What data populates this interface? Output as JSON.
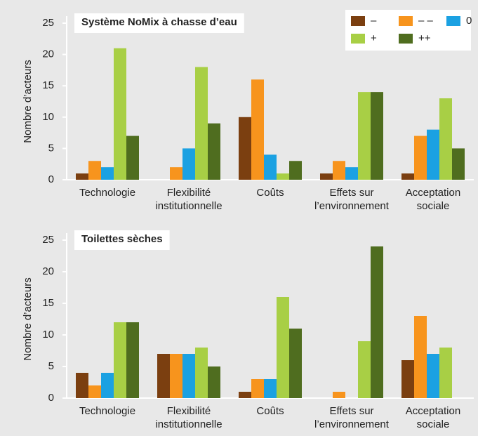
{
  "chart_data": [
    {
      "type": "bar",
      "title": "Système NoMix à chasse d’eau",
      "y_label": "Nombre d’acteurs",
      "categories": [
        [
          "Technologie"
        ],
        [
          "Flexibilité",
          "institutionnelle"
        ],
        [
          "Coûts"
        ],
        [
          "Effets sur",
          "l’environnement"
        ],
        [
          "Acceptation",
          "sociale"
        ]
      ],
      "series": [
        {
          "name": "–",
          "color": "#7b3f10",
          "values": [
            1,
            0,
            10,
            1,
            1
          ]
        },
        {
          "name": "– –",
          "color": "#f7941d",
          "values": [
            3,
            2,
            16,
            3,
            7
          ]
        },
        {
          "name": "0",
          "color": "#1ba1e2",
          "values": [
            2,
            5,
            4,
            2,
            8
          ]
        },
        {
          "name": "+",
          "color": "#a8cf45",
          "values": [
            21,
            18,
            1,
            14,
            13
          ]
        },
        {
          "name": "++",
          "color": "#4f6d1f",
          "values": [
            7,
            9,
            3,
            14,
            5
          ]
        }
      ],
      "ylim": [
        0,
        25
      ],
      "yticks": [
        0,
        5,
        10,
        15,
        20,
        25
      ],
      "legend": "top-right"
    },
    {
      "type": "bar",
      "title": "Toilettes sèches",
      "y_label": "Nombre d’acteurs",
      "categories": [
        [
          "Technologie"
        ],
        [
          "Flexibilité",
          "institutionnelle"
        ],
        [
          "Coûts"
        ],
        [
          "Effets sur",
          "l’environnement"
        ],
        [
          "Acceptation",
          "sociale"
        ]
      ],
      "series": [
        {
          "color": "#7b3f10",
          "values": [
            4,
            7,
            1,
            0,
            6
          ]
        },
        {
          "color": "#f7941d",
          "values": [
            2,
            7,
            3,
            1,
            13
          ]
        },
        {
          "color": "#1ba1e2",
          "values": [
            4,
            7,
            3,
            0,
            7
          ]
        },
        {
          "color": "#a8cf45",
          "values": [
            12,
            8,
            16,
            9,
            8
          ]
        },
        {
          "color": "#4f6d1f",
          "values": [
            12,
            5,
            11,
            24,
            0
          ]
        }
      ],
      "ylim": [
        0,
        25
      ],
      "yticks": [
        0,
        5,
        10,
        15,
        20,
        25
      ]
    }
  ]
}
